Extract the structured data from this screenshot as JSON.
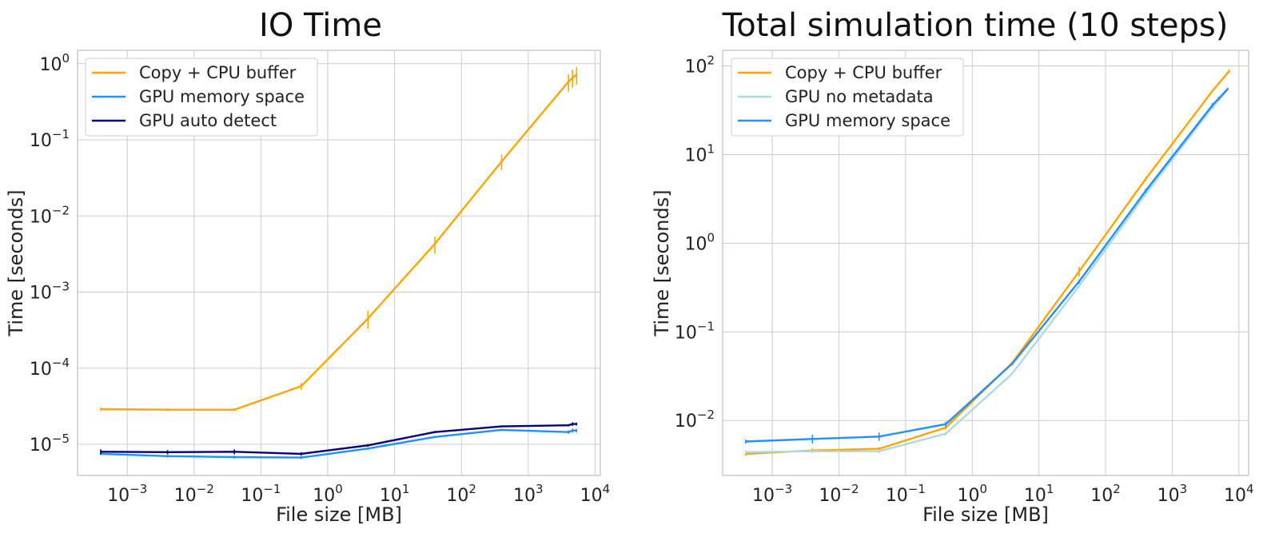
{
  "colors": {
    "copy_cpu_buffer": "#FFA500",
    "gpu_memory_space": "#1E90FF",
    "gpu_auto_detect": "#000080",
    "gpu_no_metadata": "#ADD8E6"
  },
  "chart_data": [
    {
      "type": "line",
      "title": "IO Time",
      "xlabel": "File size [MB]",
      "ylabel": "Time [seconds]",
      "xscale": "log",
      "yscale": "log",
      "xlim": [
        0.00018,
        12000
      ],
      "ylim": [
        3.9e-06,
        1.5
      ],
      "grid": true,
      "legend_position": "top-left",
      "x_ticks": [
        {
          "base": "10",
          "exp": "−3",
          "value": 0.001
        },
        {
          "base": "10",
          "exp": "−2",
          "value": 0.01
        },
        {
          "base": "10",
          "exp": "−1",
          "value": 0.1
        },
        {
          "base": "10",
          "exp": "0",
          "value": 1
        },
        {
          "base": "10",
          "exp": "1",
          "value": 10
        },
        {
          "base": "10",
          "exp": "2",
          "value": 100
        },
        {
          "base": "10",
          "exp": "3",
          "value": 1000
        },
        {
          "base": "10",
          "exp": "4",
          "value": 10000
        }
      ],
      "y_ticks": [
        {
          "base": "10",
          "exp": "−5",
          "value": 1e-05
        },
        {
          "base": "10",
          "exp": "−4",
          "value": 0.0001
        },
        {
          "base": "10",
          "exp": "−3",
          "value": 0.001
        },
        {
          "base": "10",
          "exp": "−2",
          "value": 0.01
        },
        {
          "base": "10",
          "exp": "−1",
          "value": 0.1
        },
        {
          "base": "10",
          "exp": "0",
          "value": 1
        }
      ],
      "series": [
        {
          "name": "Copy + CPU buffer",
          "color_key": "copy_cpu_buffer",
          "x": [
            0.0004,
            0.004,
            0.04,
            0.4,
            4,
            40,
            400,
            4000,
            4600,
            5300
          ],
          "y": [
            2.9e-05,
            2.85e-05,
            2.85e-05,
            5.8e-05,
            0.00045,
            0.0043,
            0.052,
            0.58,
            0.66,
            0.72
          ],
          "yerr": [
            1.5e-06,
            1.2e-06,
            1.2e-06,
            6e-06,
            0.00012,
            0.0011,
            0.012,
            0.15,
            0.17,
            0.19
          ]
        },
        {
          "name": "GPU memory space",
          "color_key": "gpu_memory_space",
          "x": [
            0.0004,
            0.004,
            0.04,
            0.4,
            4,
            40,
            400,
            4000,
            4600,
            5300
          ],
          "y": [
            7.5e-06,
            7e-06,
            6.8e-06,
            6.7e-06,
            8.8e-06,
            1.25e-05,
            1.55e-05,
            1.45e-05,
            1.52e-05,
            1.52e-05
          ],
          "yerr": [
            3e-07,
            3e-07,
            3e-07,
            3e-07,
            3e-07,
            4e-07,
            5e-07,
            8e-07,
            9e-07,
            8e-07
          ]
        },
        {
          "name": "GPU auto detect",
          "color_key": "gpu_auto_detect",
          "x": [
            0.0004,
            0.004,
            0.04,
            0.4,
            4,
            40,
            400,
            4000,
            4600,
            5300
          ],
          "y": [
            8e-06,
            7.9e-06,
            8e-06,
            7.5e-06,
            9.7e-06,
            1.45e-05,
            1.72e-05,
            1.78e-05,
            1.85e-05,
            1.85e-05
          ],
          "yerr": [
            6e-07,
            5e-07,
            6e-07,
            4e-07,
            4e-07,
            5e-07,
            5e-07,
            6e-07,
            1e-06,
            8e-07
          ]
        }
      ]
    },
    {
      "type": "line",
      "title": "Total simulation time (10 steps)",
      "xlabel": "File size [MB]",
      "ylabel": "Time [seconds]",
      "xscale": "log",
      "yscale": "log",
      "xlim": [
        0.00018,
        14000
      ],
      "ylim": [
        0.0024,
        150
      ],
      "grid": true,
      "legend_position": "top-left",
      "x_ticks": [
        {
          "base": "10",
          "exp": "−3",
          "value": 0.001
        },
        {
          "base": "10",
          "exp": "−2",
          "value": 0.01
        },
        {
          "base": "10",
          "exp": "−1",
          "value": 0.1
        },
        {
          "base": "10",
          "exp": "0",
          "value": 1
        },
        {
          "base": "10",
          "exp": "1",
          "value": 10
        },
        {
          "base": "10",
          "exp": "2",
          "value": 100
        },
        {
          "base": "10",
          "exp": "3",
          "value": 1000
        },
        {
          "base": "10",
          "exp": "4",
          "value": 10000
        }
      ],
      "y_ticks": [
        {
          "base": "10",
          "exp": "−2",
          "value": 0.01
        },
        {
          "base": "10",
          "exp": "−1",
          "value": 0.1
        },
        {
          "base": "10",
          "exp": "0",
          "value": 1
        },
        {
          "base": "10",
          "exp": "1",
          "value": 10
        },
        {
          "base": "10",
          "exp": "2",
          "value": 100
        }
      ],
      "series": [
        {
          "name": "Copy + CPU buffer",
          "color_key": "copy_cpu_buffer",
          "x": [
            0.0004,
            0.004,
            0.04,
            0.4,
            4,
            40,
            400,
            4000,
            7200
          ],
          "y": [
            0.0042,
            0.0046,
            0.0048,
            0.0083,
            0.045,
            0.48,
            5.3,
            52,
            88
          ],
          "yerr": [
            0.0002,
            0.0003,
            0.0002,
            0.0004,
            0.002,
            0.06,
            0.3,
            2,
            3
          ]
        },
        {
          "name": "GPU no metadata",
          "color_key": "gpu_no_metadata",
          "x": [
            0.0004,
            0.004,
            0.04,
            0.4,
            4,
            40,
            400,
            4000,
            6800
          ],
          "y": [
            0.0044,
            0.0045,
            0.0045,
            0.0071,
            0.034,
            0.33,
            3.6,
            34,
            54
          ],
          "yerr": [
            0.0002,
            0.0002,
            0.0002,
            0.0003,
            0.001,
            0.02,
            0.2,
            1.5,
            2
          ]
        },
        {
          "name": "GPU memory space",
          "color_key": "gpu_memory_space",
          "x": [
            0.0004,
            0.004,
            0.04,
            0.4,
            4,
            40,
            400,
            4000,
            5000,
            6800
          ],
          "y": [
            0.0058,
            0.0062,
            0.0066,
            0.0091,
            0.044,
            0.37,
            3.9,
            36,
            43,
            55
          ],
          "yerr": [
            0.0003,
            0.0007,
            0.0007,
            0.0006,
            0.002,
            0.02,
            0.2,
            2,
            2,
            2
          ]
        }
      ]
    }
  ]
}
